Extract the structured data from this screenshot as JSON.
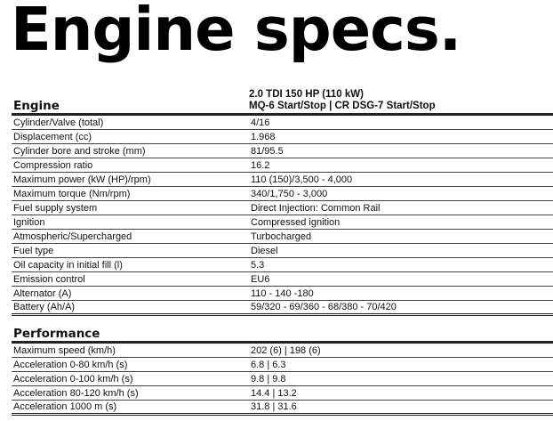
{
  "title": "Engine specs.",
  "engine": {
    "heading": "Engine",
    "column_header": [
      "2.0 TDI 150 HP (110 kW)",
      "MQ-6 Start/Stop | CR DSG-7 Start/Stop"
    ],
    "rows": [
      {
        "label": "Cylinder/Valve (total)",
        "value": "4/16"
      },
      {
        "label": "Displacement (cc)",
        "value": "1.968"
      },
      {
        "label": "Cylinder bore and stroke (mm)",
        "value": "81/95.5"
      },
      {
        "label": "Compression ratio",
        "value": "16.2"
      },
      {
        "label": "Maximum power (kW (HP)/rpm)",
        "value": "110 (150)/3,500 - 4,000"
      },
      {
        "label": "Maximum torque (Nm/rpm)",
        "value": "340/1,750 - 3,000"
      },
      {
        "label": "Fuel supply system",
        "value": "Direct Injection: Common Rail"
      },
      {
        "label": "Ignition",
        "value": "Compressed ignition"
      },
      {
        "label": "Atmospheric/Supercharged",
        "value": "Turbocharged"
      },
      {
        "label": "Fuel type",
        "value": "Diesel"
      },
      {
        "label": "Oil capacity in initial fill (l)",
        "value": "5.3"
      },
      {
        "label": "Emission control",
        "value": "EU6"
      },
      {
        "label": "Alternator (A)",
        "value": "110 - 140 -180"
      },
      {
        "label": "Battery (Ah/A)",
        "value": "59/320 - 69/360 - 68/380 - 70/420"
      }
    ]
  },
  "performance": {
    "heading": "Performance",
    "rows": [
      {
        "label": "Maximum speed (km/h)",
        "value": "202 (6) | 198 (6)"
      },
      {
        "label": "Acceleration 0-80 km/h (s)",
        "value": "6.8 | 6.3"
      },
      {
        "label": "Acceleration 0-100 km/h (s)",
        "value": "9.8 | 9.8"
      },
      {
        "label": "Acceleration 80-120 km/h (s)",
        "value": "14.4 | 13.2"
      },
      {
        "label": "Acceleration 1000 m (s)",
        "value": "31.8 | 31.6"
      }
    ]
  }
}
